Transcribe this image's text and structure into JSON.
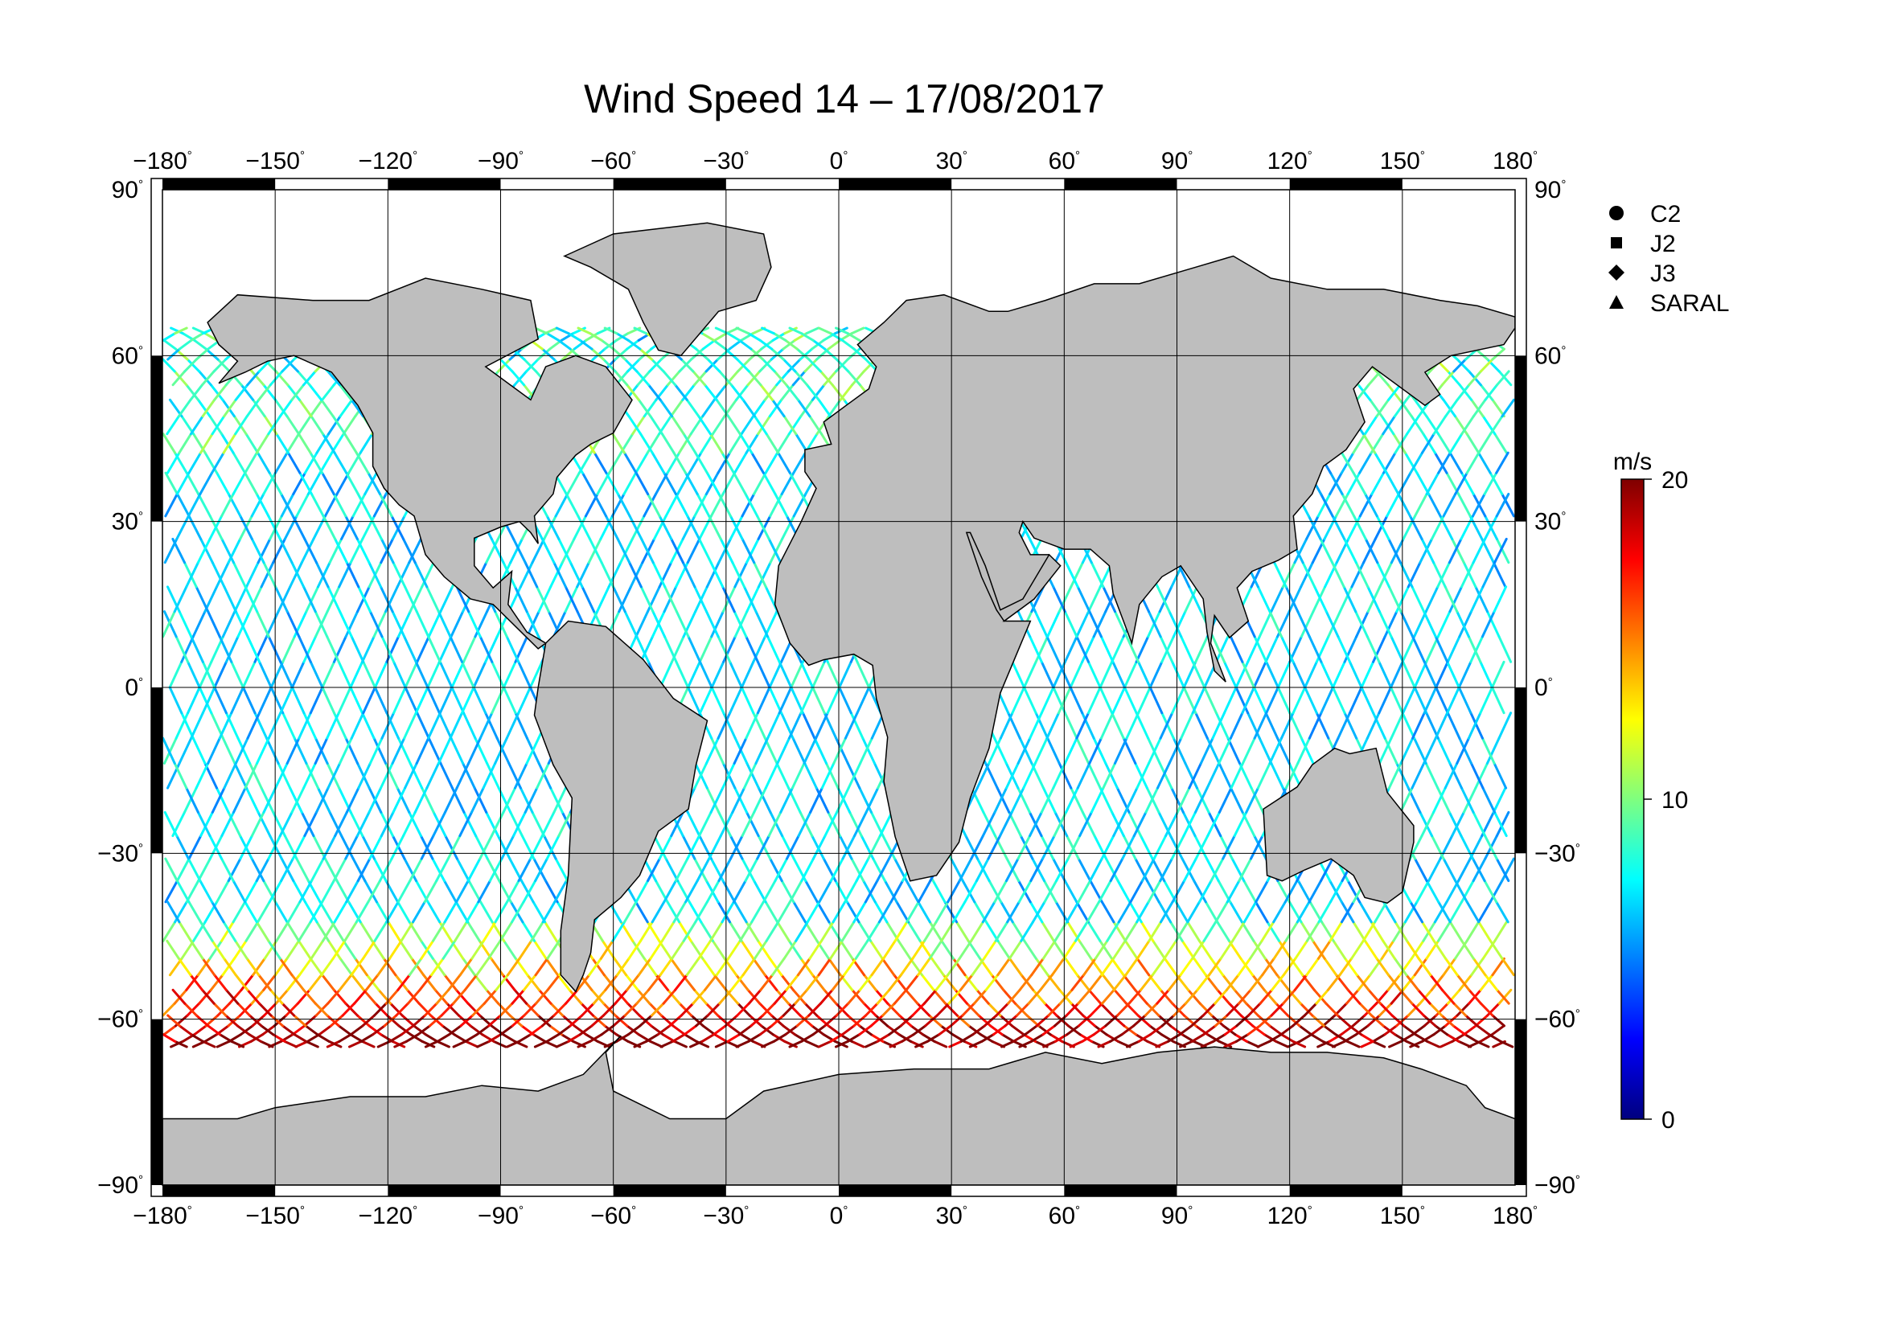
{
  "title": "Wind Speed 14 – 17/08/2017",
  "axes": {
    "lon_labels": [
      "−180",
      "−150",
      "−120",
      "−90",
      "−60",
      "−30",
      "0",
      "30",
      "60",
      "90",
      "120",
      "150",
      "180"
    ],
    "lat_labels": [
      "90",
      "60",
      "30",
      "0",
      "−30",
      "−60",
      "−90"
    ],
    "degree_symbol": "°"
  },
  "legend": {
    "items": [
      {
        "symbol": "circle",
        "label": "C2"
      },
      {
        "symbol": "square",
        "label": "J2"
      },
      {
        "symbol": "diamond",
        "label": "J3"
      },
      {
        "symbol": "triangle",
        "label": "SARAL"
      }
    ]
  },
  "colorbar": {
    "unit": "m/s",
    "min": 0,
    "max": 20,
    "tick_labels": [
      "20",
      "10",
      "0"
    ],
    "colors": [
      "#00007f",
      "#0000ff",
      "#007fff",
      "#00ffff",
      "#7fff7f",
      "#ffff00",
      "#ff7f00",
      "#ff0000",
      "#7f0000"
    ]
  },
  "chart_data": {
    "type": "map",
    "projection": "equirectangular",
    "title": "Wind Speed 14 – 17/08/2017",
    "xlim": [
      -180,
      180
    ],
    "ylim": [
      -90,
      90
    ],
    "x_ticks": [
      -180,
      -150,
      -120,
      -90,
      -60,
      -30,
      0,
      30,
      60,
      90,
      120,
      150,
      180
    ],
    "y_ticks": [
      -90,
      -60,
      -30,
      0,
      30,
      60,
      90
    ],
    "grid": true,
    "series": [
      {
        "name": "C2",
        "marker": "circle"
      },
      {
        "name": "J2",
        "marker": "square"
      },
      {
        "name": "J3",
        "marker": "diamond"
      },
      {
        "name": "SARAL",
        "marker": "triangle"
      }
    ],
    "color_scale": {
      "unit": "m/s",
      "min": 0,
      "max": 20
    }
  },
  "colors": {
    "land": "#bebebe",
    "coast": "#000000",
    "ocean": "#ffffff",
    "frame": "#000000"
  }
}
